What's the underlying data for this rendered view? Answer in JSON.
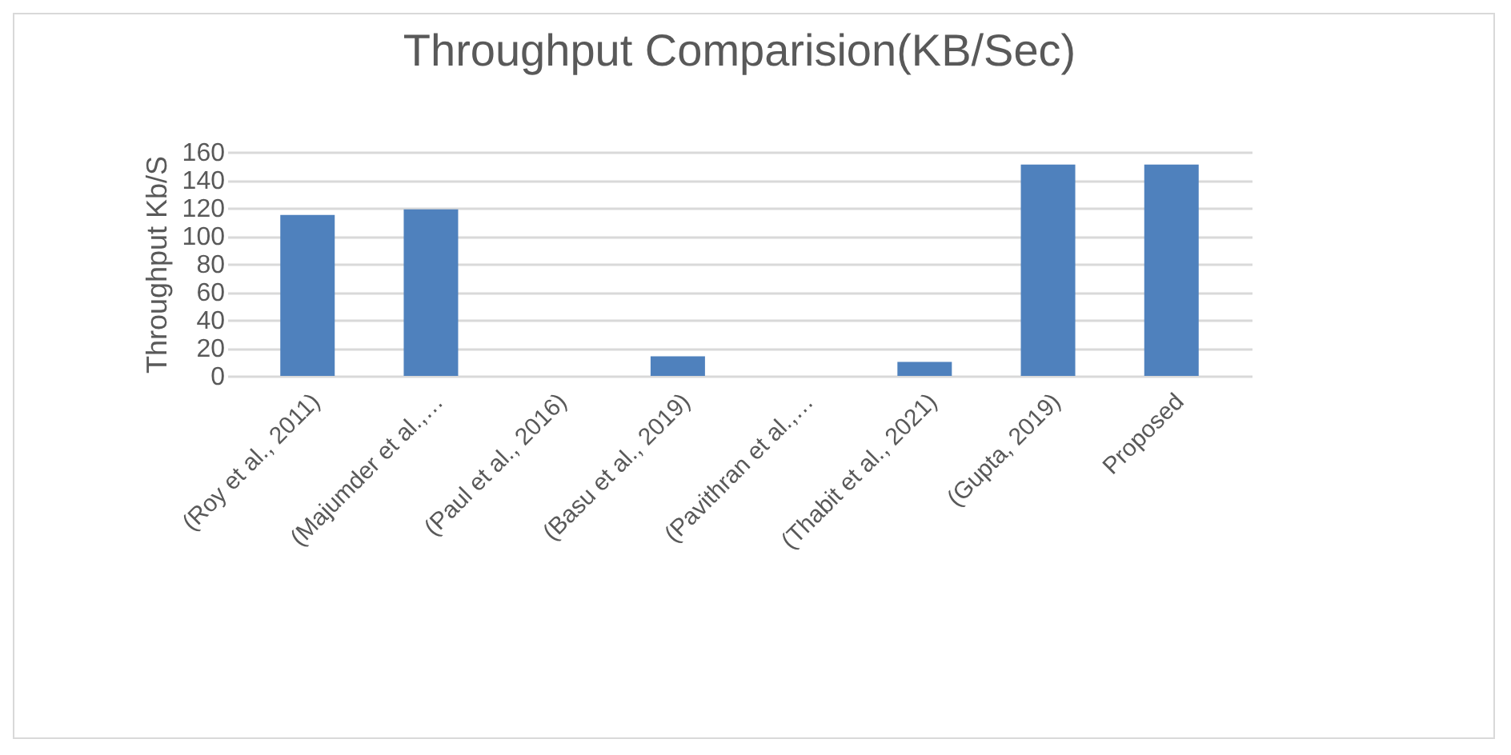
{
  "chart_data": {
    "type": "bar",
    "title": "Throughput Comparision(KB/Sec)",
    "ylabel": "Throughput Kb/S",
    "categories": [
      "(Roy et al., 2011)",
      "(Majumder et al.,…",
      "(Paul et al., 2016)",
      "(Basu et al., 2019)",
      "(Pavithran et al.,…",
      "(Thabit et al., 2021)",
      "(Gupta, 2019)",
      "Proposed"
    ],
    "values": [
      115,
      119,
      0,
      14,
      0,
      10,
      151,
      151
    ],
    "color": "#4f81bd",
    "ylim": [
      0,
      160
    ],
    "yticks": [
      0,
      20,
      40,
      60,
      80,
      100,
      120,
      140,
      160
    ],
    "grid": "y"
  }
}
